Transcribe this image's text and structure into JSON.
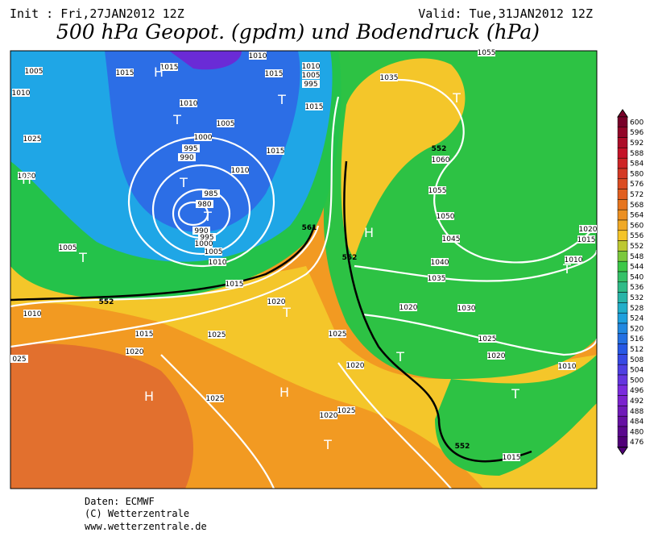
{
  "header": {
    "init": "Init : Fri,27JAN2012 12Z",
    "valid": "Valid: Tue,31JAN2012 12Z",
    "title": "500 hPa Geopot. (gpdm) und Bodendruck (hPa)"
  },
  "footer": {
    "source": "Daten: ECMWF",
    "copyright": "(C) Wetterzentrale",
    "url": "www.wetterzentrale.de"
  },
  "map": {
    "isobar_labels": [
      "1005",
      "1015",
      "1015",
      "1010",
      "1010",
      "1005",
      "995",
      "1015",
      "1015",
      "1015",
      "1010",
      "1005",
      "1000",
      "995",
      "990",
      "1010",
      "985",
      "980",
      "990",
      "995",
      "1000",
      "1005",
      "1010",
      "1015",
      "1005",
      "1010",
      "1025",
      "1030",
      "1010",
      "1015",
      "1020",
      "1025",
      "1025",
      "025",
      "1020",
      "1025",
      "1020",
      "1025",
      "1020",
      "1035",
      "1060",
      "1055",
      "1050",
      "1045",
      "1040",
      "1035",
      "1030",
      "1020",
      "1025",
      "1020",
      "1010",
      "1015",
      "1010",
      "1020",
      "1015",
      "1055"
    ],
    "height_labels": [
      "552",
      "552",
      "552",
      "552",
      "561"
    ],
    "centers": [
      "H",
      "T",
      "T",
      "T",
      "H",
      "T",
      "T",
      "T",
      "H",
      "T",
      "T",
      "T",
      "H",
      "H",
      "T",
      "T"
    ]
  },
  "colorbar": {
    "labels": [
      "600",
      "596",
      "592",
      "588",
      "584",
      "580",
      "576",
      "572",
      "568",
      "564",
      "560",
      "556",
      "552",
      "548",
      "544",
      "540",
      "536",
      "532",
      "528",
      "524",
      "520",
      "516",
      "512",
      "508",
      "504",
      "500",
      "496",
      "492",
      "488",
      "484",
      "480",
      "476"
    ]
  }
}
